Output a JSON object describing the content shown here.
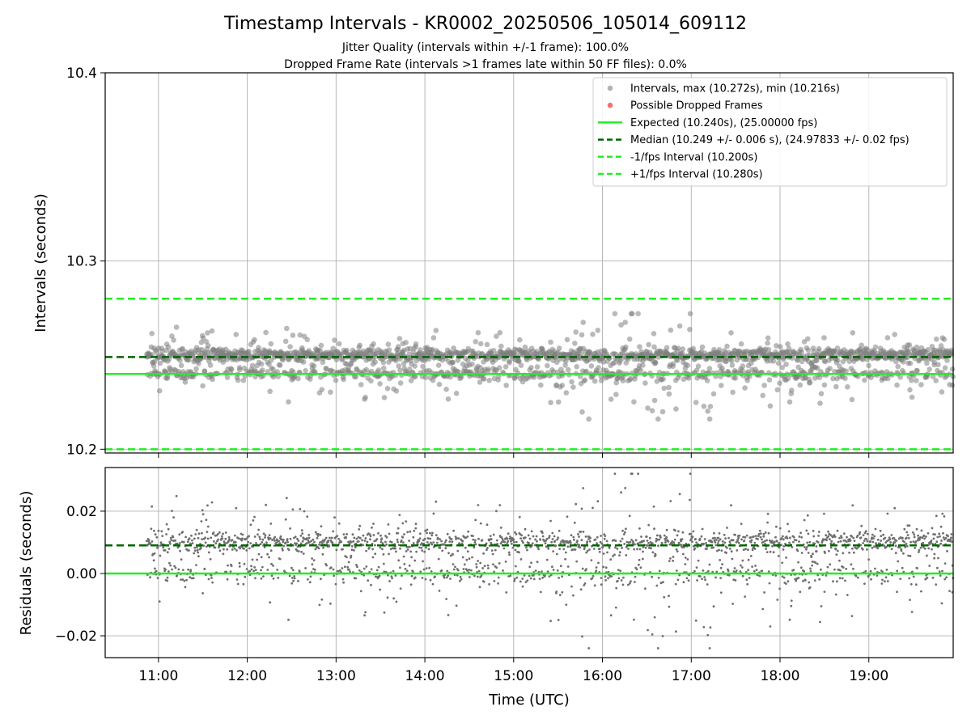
{
  "figure": {
    "title": "Timestamp Intervals - KR0002_20250506_105014_609112",
    "subtitle_1": "Jitter Quality (intervals within +/-1 frame): 100.0%",
    "subtitle_2": "Dropped Frame Rate (intervals >1 frames late within 50 FF files): 0.0%"
  },
  "colors": {
    "scatter": "#808080",
    "dropped": "#f06060",
    "expected": "#22ee22",
    "median": "#006400",
    "fps_interval": "#22ee22",
    "grid": "#b0b0b0"
  },
  "chart_data": [
    {
      "type": "scatter",
      "panel": "intervals",
      "ylabel": "Intervals (seconds)",
      "ylim": [
        10.198,
        10.4
      ],
      "yticks": [
        10.2,
        10.3,
        10.4
      ],
      "ytick_labels": [
        "10.2",
        "10.3",
        "10.4"
      ],
      "grid": true,
      "legend_position": "top-right",
      "x_range_utc": [
        "10:52",
        "19:57"
      ],
      "series": [
        {
          "name": "Intervals, max (10.272s), min (10.216s)",
          "kind": "scatter",
          "y_band": [
            10.216,
            10.272
          ],
          "typical_levels": [
            10.24,
            10.25
          ]
        },
        {
          "name": "Possible Dropped Frames",
          "kind": "scatter",
          "count": 0
        },
        {
          "name": "Expected (10.240s), (25.00000 fps)",
          "kind": "hline",
          "y": 10.24
        },
        {
          "name": "Median (10.249 +/- 0.006 s), (24.97833 +/- 0.02 fps)",
          "kind": "hline",
          "y": 10.249
        },
        {
          "name": "-1/fps Interval (10.200s)",
          "kind": "hline",
          "y": 10.2
        },
        {
          "name": "+1/fps Interval (10.280s)",
          "kind": "hline",
          "y": 10.28
        }
      ]
    },
    {
      "type": "scatter",
      "panel": "residuals",
      "ylabel": "Residuals (seconds)",
      "xlabel": "Time (UTC)",
      "ylim": [
        -0.027,
        0.034
      ],
      "yticks": [
        -0.02,
        0.0,
        0.02
      ],
      "ytick_labels": [
        "−0.02",
        "0.00",
        "0.02"
      ],
      "x_range_utc": [
        "10:52",
        "19:57"
      ],
      "xlim_utc": [
        "10:24",
        "19:57"
      ],
      "xticks": [
        "11:00",
        "12:00",
        "13:00",
        "14:00",
        "15:00",
        "16:00",
        "17:00",
        "18:00",
        "19:00"
      ],
      "grid": true,
      "series": [
        {
          "kind": "scatter",
          "y_band": [
            -0.024,
            0.032
          ]
        },
        {
          "kind": "hline",
          "y": 0.009,
          "style": "dashed",
          "role": "median"
        },
        {
          "kind": "hline",
          "y": 0.0,
          "style": "solid",
          "role": "expected"
        }
      ]
    }
  ]
}
